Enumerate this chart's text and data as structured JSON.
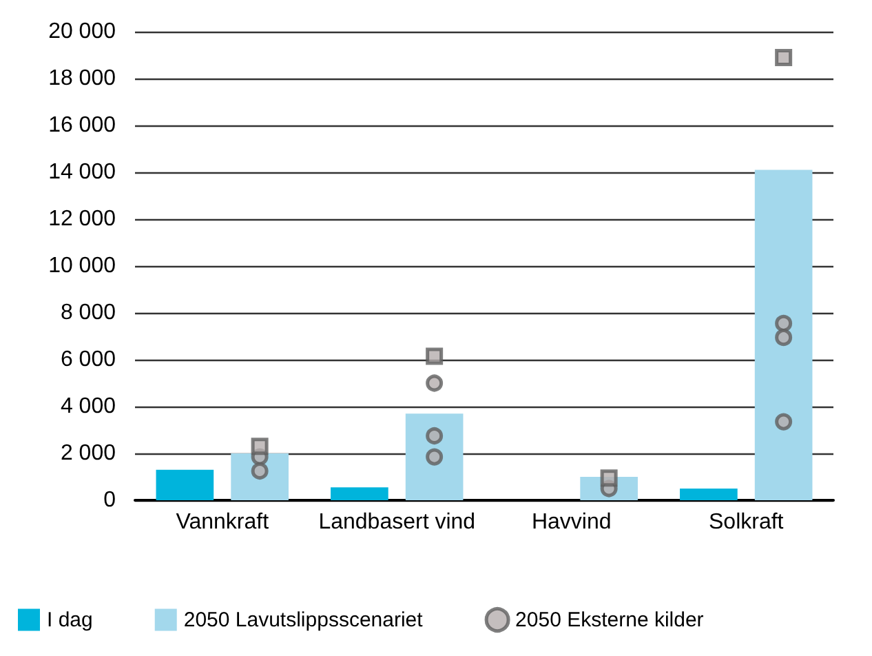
{
  "chart_data": {
    "type": "bar",
    "categories": [
      "Vannkraft",
      "Landbasert vind",
      "Havvind",
      "Solkraft"
    ],
    "series": [
      {
        "name": "I dag",
        "color": "#00b4dc",
        "values": [
          1300,
          550,
          0,
          500
        ]
      },
      {
        "name": "2050 Lavutslippsscenariet",
        "color": "#a3d8ec",
        "values": [
          2000,
          3700,
          1000,
          14100
        ]
      },
      {
        "name": "2050 Eksterne kilder",
        "type": "scatter",
        "marker": "circle",
        "color": "#b5aeae",
        "x": [
          "Vannkraft",
          "Vannkraft",
          "Landbasert vind",
          "Landbasert vind",
          "Landbasert vind",
          "Havvind",
          "Solkraft",
          "Solkraft",
          "Solkraft"
        ],
        "values": [
          1850,
          1250,
          5000,
          2750,
          1850,
          500,
          7550,
          6950,
          3350
        ]
      },
      {
        "type": "scatter",
        "marker": "square",
        "color": "#b5aeae",
        "x": [
          "Vannkraft",
          "Landbasert vind",
          "Havvind",
          "Solkraft"
        ],
        "values": [
          2300,
          6150,
          950,
          18900
        ]
      }
    ],
    "ylim": [
      0,
      20000
    ],
    "yticks": [
      {
        "value": 0,
        "label": "0"
      },
      {
        "value": 2000,
        "label": "2 000"
      },
      {
        "value": 4000,
        "label": "4 000"
      },
      {
        "value": 6000,
        "label": "6 000"
      },
      {
        "value": 8000,
        "label": "8 000"
      },
      {
        "value": 10000,
        "label": "10 000"
      },
      {
        "value": 12000,
        "label": "12 000"
      },
      {
        "value": 14000,
        "label": "14 000"
      },
      {
        "value": 16000,
        "label": "16 000"
      },
      {
        "value": 18000,
        "label": "18 000"
      },
      {
        "value": 20000,
        "label": "20 000"
      }
    ],
    "grid": "y",
    "legend": "bottom"
  }
}
